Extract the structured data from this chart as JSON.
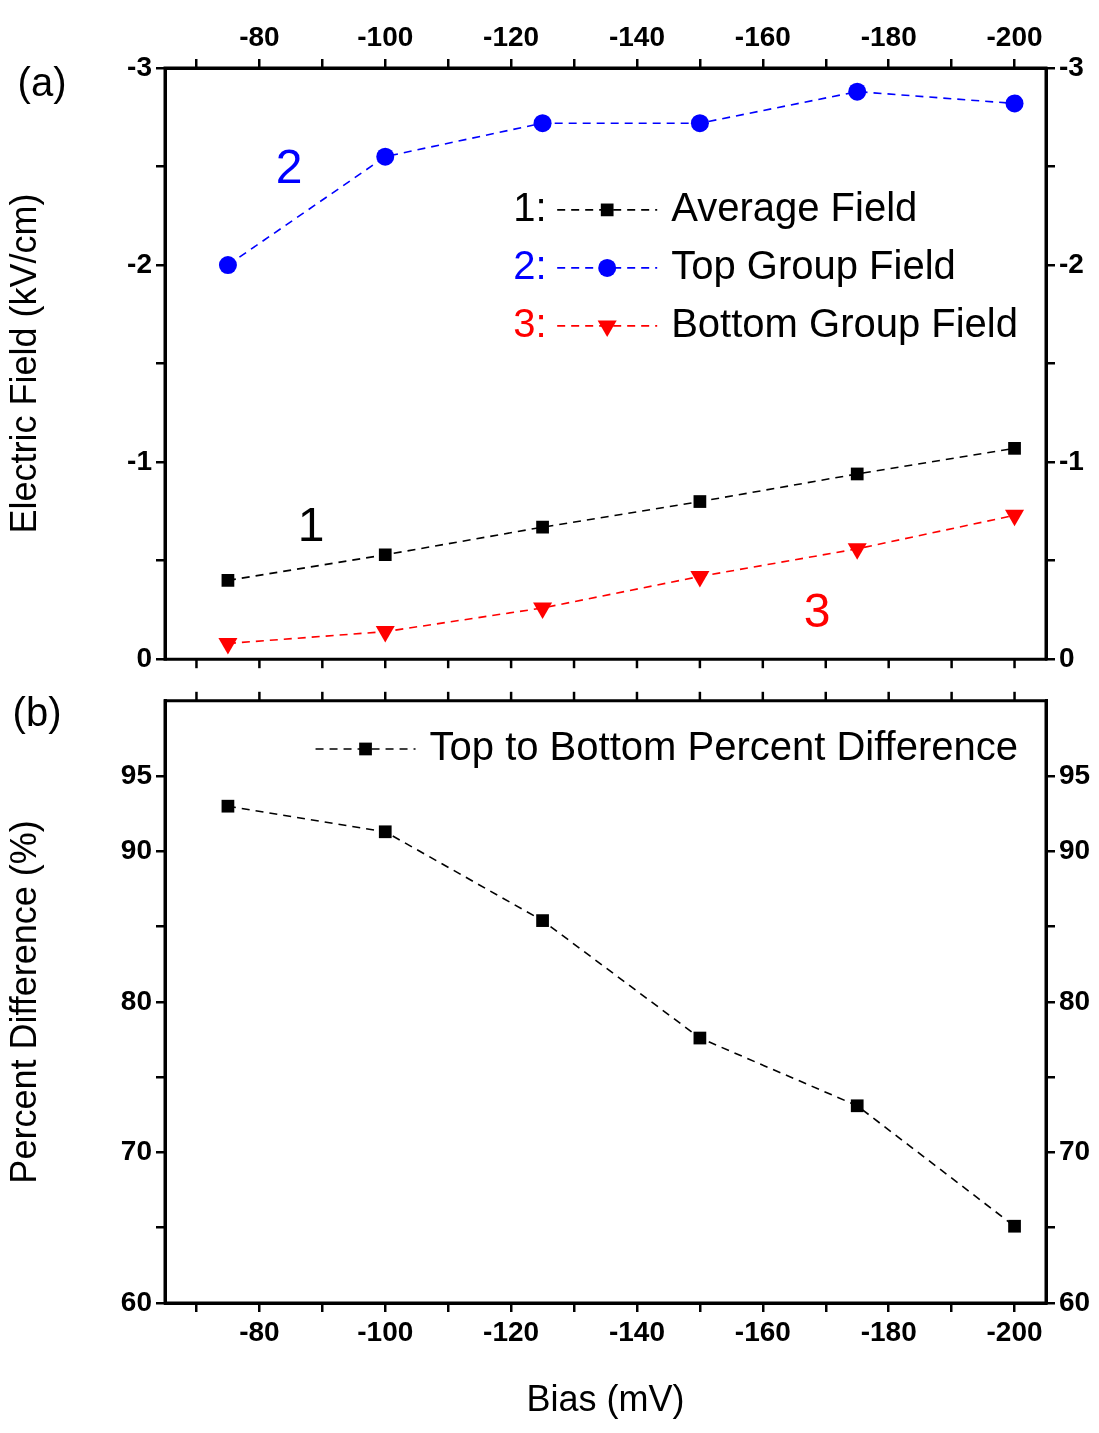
{
  "chart_data": [
    {
      "type": "line",
      "ylabel": "Electric Field (kV/cm)",
      "x": [
        -75,
        -100,
        -125,
        -150,
        -175,
        -200
      ],
      "series": [
        {
          "name": "Average Field",
          "color": "#000000",
          "marker": "square",
          "values": [
            -0.4,
            -0.53,
            -0.67,
            -0.8,
            -0.94,
            -1.07
          ]
        },
        {
          "name": "Top Group Field",
          "color": "#0000ff",
          "marker": "circle",
          "values": [
            -2.0,
            -2.55,
            -2.72,
            -2.72,
            -2.88,
            -2.82
          ]
        },
        {
          "name": "Bottom Group Field",
          "color": "#ff0000",
          "marker": "triangle",
          "values": [
            -0.08,
            -0.14,
            -0.26,
            -0.42,
            -0.56,
            -0.73
          ]
        }
      ],
      "line_style": "dashed",
      "grid": false,
      "legend": "top right",
      "xlim": [
        -65,
        -205
      ],
      "xticks": [
        {
          "value": -70,
          "label": null
        },
        -80,
        {
          "value": -90,
          "label": null
        },
        -100,
        {
          "value": -110,
          "label": null
        },
        -120,
        {
          "value": -130,
          "label": null
        },
        -140,
        {
          "value": -150,
          "label": null
        },
        -160,
        {
          "value": -170,
          "label": null
        },
        -180,
        {
          "value": -190,
          "label": null
        },
        -200
      ],
      "ylim": [
        0,
        -3
      ],
      "yticks": [
        0,
        {
          "value": -0.5,
          "label": null
        },
        -1,
        {
          "value": -1.5,
          "label": null
        },
        -2,
        {
          "value": -2.5,
          "label": null
        },
        -3
      ],
      "y2lim": [
        0,
        -3
      ],
      "y2ticks": [
        0,
        {
          "value": -0.5,
          "label": null
        },
        -1,
        {
          "value": -1.5,
          "label": null
        },
        -2,
        {
          "value": -2.5,
          "label": null
        },
        -3
      ],
      "annotations": [
        "(a)",
        "2",
        "1",
        "3",
        "1:",
        "2:",
        "3:"
      ]
    },
    {
      "type": "line",
      "ylabel": "Percent Difference (%)",
      "xlabel": "Bias (mV)",
      "x": [
        -75,
        -100,
        -125,
        -150,
        -175,
        -200
      ],
      "series": [
        {
          "name": "Top to Bottom Percent Difference",
          "color": "#000000",
          "marker": "square",
          "values": [
            93.0,
            91.3,
            85.4,
            77.6,
            73.1,
            65.1
          ]
        }
      ],
      "line_style": "dashed",
      "grid": false,
      "legend": "top",
      "xlim": [
        -65,
        -205
      ],
      "xticks": [
        {
          "value": -70,
          "label": null
        },
        -80,
        {
          "value": -90,
          "label": null
        },
        -100,
        {
          "value": -110,
          "label": null
        },
        -120,
        {
          "value": -130,
          "label": null
        },
        -140,
        {
          "value": -150,
          "label": null
        },
        -160,
        {
          "value": -170,
          "label": null
        },
        -180,
        {
          "value": -190,
          "label": null
        },
        -200
      ],
      "ylim": [
        60,
        100
      ],
      "yticks": [
        60,
        {
          "value": 65,
          "label": null
        },
        70,
        {
          "value": 75,
          "label": null
        },
        80,
        {
          "value": 85,
          "label": null
        },
        90,
        95
      ],
      "y2lim": [
        60,
        100
      ],
      "y2ticks": [
        60,
        {
          "value": 65,
          "label": null
        },
        70,
        {
          "value": 75,
          "label": null
        },
        80,
        {
          "value": 85,
          "label": null
        },
        90,
        95
      ],
      "annotations": [
        "(b)"
      ]
    }
  ]
}
